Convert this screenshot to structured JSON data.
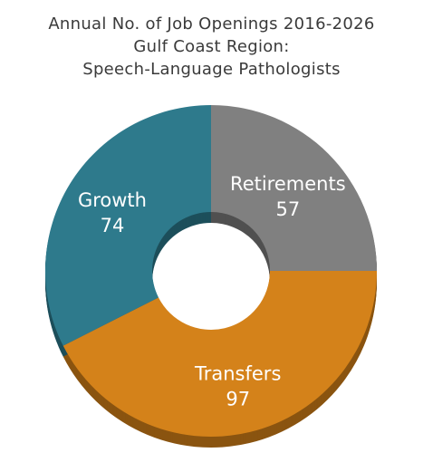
{
  "chart_data": {
    "type": "pie",
    "title": "Annual No. of Job Openings 2016-2026",
    "subtitle": "Gulf Coast Region:",
    "subtitle2": "Speech-Language Pathologists",
    "categories": [
      "Retirements",
      "Transfers",
      "Growth"
    ],
    "values": [
      57,
      97,
      74
    ],
    "value_labels": [
      "57",
      "97",
      "74"
    ],
    "donut": true,
    "start_angle_deg": 0,
    "direction": "clockwise",
    "colors": [
      "#808080",
      "#D4821A",
      "#2E7A8C"
    ],
    "shadow_colors": [
      "#505050",
      "#8A5410",
      "#1D4F5B"
    ],
    "legend": "none"
  }
}
